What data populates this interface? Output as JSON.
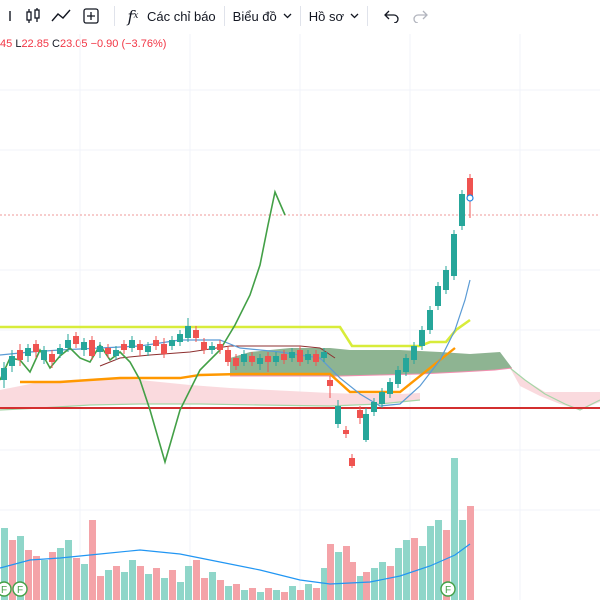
{
  "toolbar": {
    "indicators_label": "Các chỉ báo",
    "chart_label": "Biểu đồ",
    "profile_label": "Hồ sơ",
    "fx_symbol": "f",
    "fx_sub": "x",
    "icons": [
      "candles-icon",
      "line-chart-icon",
      "add-square-icon",
      "fx-icon",
      "undo-icon",
      "redo-icon"
    ]
  },
  "legend": {
    "open_partial": "45",
    "low_key": "L",
    "low_value": "22.85",
    "close_key": "C",
    "close_value": "23.05",
    "change": "−0.90 (−3.76%)"
  },
  "colors": {
    "up": "#26a69a",
    "down": "#ef5350",
    "up_volume": "#8fd6c9",
    "down_volume": "#f4a3a8",
    "ichimoku_bull": "#7aa77f",
    "ichimoku_bear": "#f7c6cc",
    "lagging": "#43a047",
    "base": "#d8ec3a",
    "conversion": "#ff9800",
    "support": "#d32f2f",
    "volume_ma": "#2196f3"
  },
  "markers": {
    "earnings_label": "F"
  }
}
